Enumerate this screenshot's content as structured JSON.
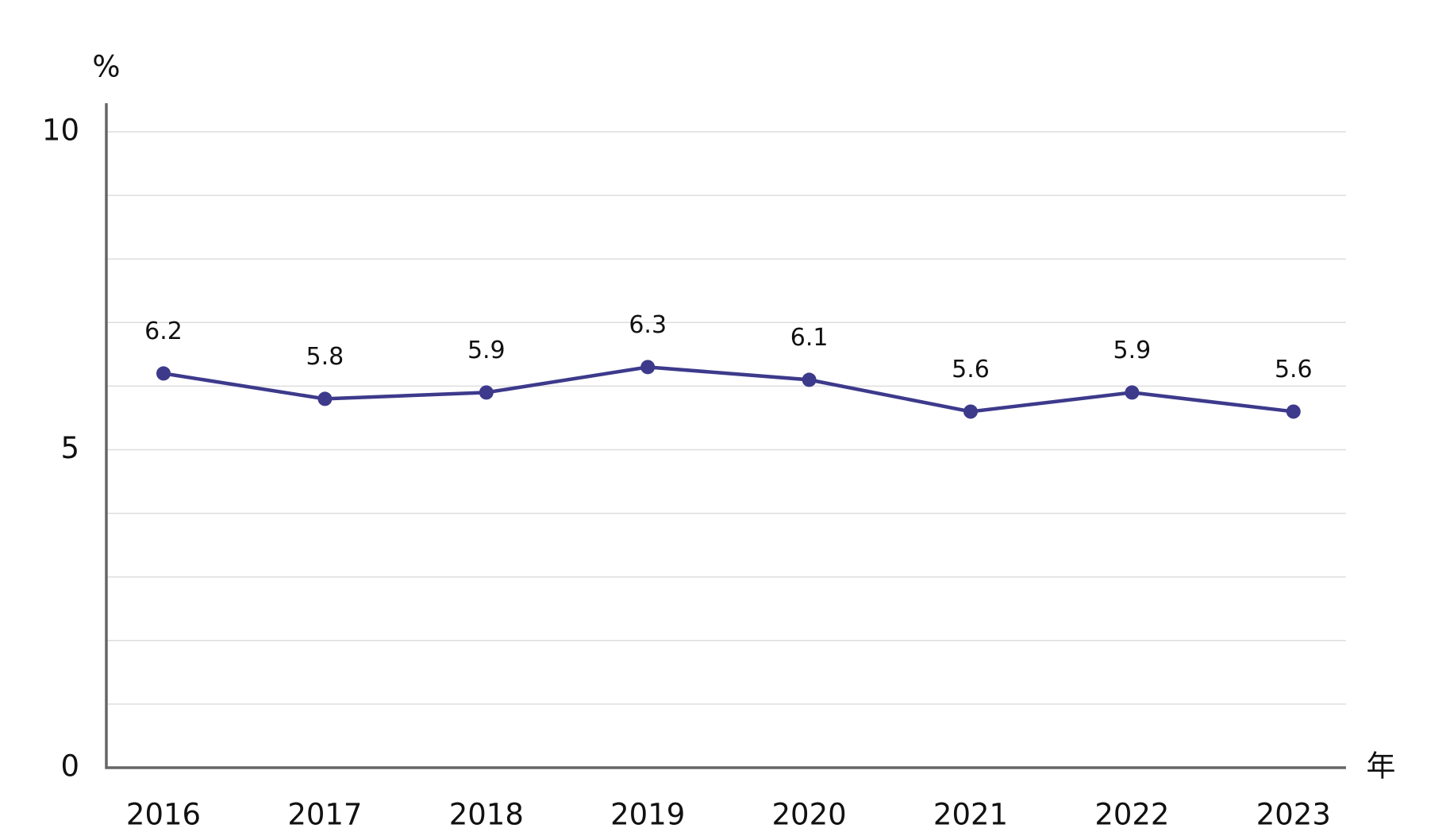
{
  "chart_data": {
    "type": "line",
    "y_unit": "%",
    "x_unit": "年",
    "categories": [
      "2016",
      "2017",
      "2018",
      "2019",
      "2020",
      "2021",
      "2022",
      "2023"
    ],
    "series": [
      {
        "color": "#3d3a8c",
        "values": [
          6.2,
          5.8,
          5.9,
          6.3,
          6.1,
          5.6,
          5.9,
          5.6
        ]
      }
    ],
    "ylim": [
      0,
      10
    ],
    "yticks": [
      0,
      5,
      10
    ],
    "minor_yticks": [
      1,
      2,
      3,
      4,
      6,
      7,
      8,
      9
    ],
    "grid": true
  }
}
